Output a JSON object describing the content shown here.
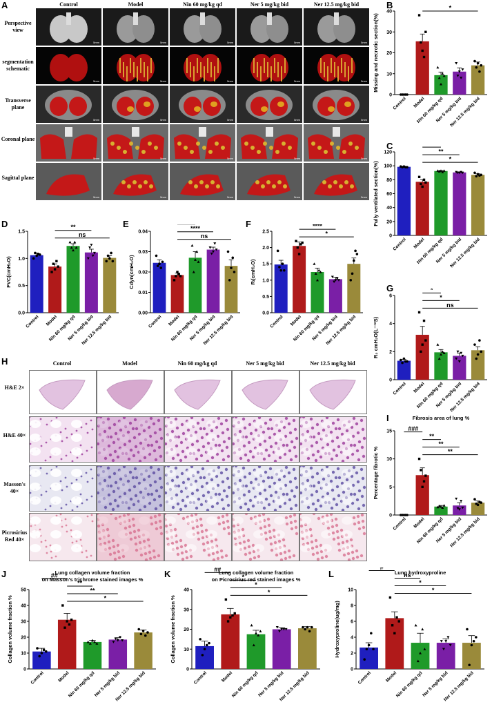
{
  "panel_letters": {
    "A": "A",
    "B": "B",
    "C": "C",
    "D": "D",
    "E": "E",
    "F": "F",
    "G": "G",
    "H": "H",
    "I": "I",
    "J": "J",
    "K": "K",
    "L": "L"
  },
  "groups": [
    "Control",
    "Model",
    "Nin 60 mg/kg qd",
    "Ner 5 mg/kg bid",
    "Ner 12.5 mg/kg bid"
  ],
  "colors": {
    "control": "#1f1fbf",
    "model": "#b01a1a",
    "nin": "#1f9a2a",
    "ner5": "#7a1fa6",
    "ner12": "#9a8a3a"
  },
  "panelA": {
    "headers": [
      "Control",
      "Model",
      "Nin 60 mg/kg qd",
      "Ner 5 mg/kg bid",
      "Ner 12.5 mg/kg bid"
    ],
    "rows": [
      "Perspective view",
      "segmentation schematic",
      "Transverse plane",
      "Coronal plane",
      "Sagittal plane"
    ],
    "scale_label": "5mm"
  },
  "panelH": {
    "headers": [
      "Control",
      "Model",
      "Nin 60 mg/kg qd",
      "Ner 5 mg/kg bid",
      "Ner 12.5 mg/kg bid"
    ],
    "rows": [
      "H&E 2×",
      "H&E 40×",
      "Masson's 40×",
      "Picrosirius Red 40×"
    ]
  },
  "chart_data": [
    {
      "id": "B",
      "type": "bar",
      "title": "",
      "ylabel": "Missing and necrotic section(%)",
      "ylim": [
        0,
        40
      ],
      "yticks": [
        0,
        10,
        20,
        30,
        40
      ],
      "categories": [
        "Control",
        "Model",
        "Nin 60 mg/kg qd",
        "Ner 5 mg/kg bid",
        "Ner 12.5 mg/kg bid"
      ],
      "values": [
        0,
        25.5,
        9.3,
        11,
        14
      ],
      "errors": [
        0,
        3.5,
        1.5,
        1.8,
        1.6
      ],
      "points": [
        [
          0,
          0,
          0,
          0,
          0
        ],
        [
          38,
          25,
          21,
          18,
          30
        ],
        [
          13,
          8,
          5,
          10,
          9
        ],
        [
          15,
          9,
          11,
          8,
          12
        ],
        [
          16,
          13,
          15,
          11,
          14
        ]
      ],
      "significance": [
        {
          "from": 1,
          "to": 0,
          "label": "###"
        },
        {
          "from": 1,
          "to": 2,
          "label": "**"
        },
        {
          "from": 1,
          "to": 3,
          "label": "**"
        },
        {
          "from": 1,
          "to": 4,
          "label": "*"
        }
      ]
    },
    {
      "id": "C",
      "type": "bar",
      "title": "",
      "ylabel": "Fully ventilated section(%)",
      "ylim": [
        0,
        120
      ],
      "yticks": [
        0,
        20,
        40,
        60,
        80,
        100,
        120
      ],
      "categories": [
        "Control",
        "Model",
        "Nin 60 mg/kg qd",
        "Ner 5 mg/kg bid",
        "Ner 12.5 mg/kg bid"
      ],
      "values": [
        98.5,
        77,
        92.5,
        90.5,
        87
      ],
      "errors": [
        0.5,
        3,
        0.8,
        0.8,
        1.5
      ],
      "points": [
        [
          99,
          98,
          99,
          98,
          98
        ],
        [
          84,
          74,
          70,
          80,
          76
        ],
        [
          93,
          92,
          93,
          91,
          93
        ],
        [
          91,
          90,
          90,
          91,
          90
        ],
        [
          90,
          85,
          88,
          86,
          87
        ]
      ],
      "significance": [
        {
          "from": 1,
          "to": 0,
          "label": "###"
        },
        {
          "from": 1,
          "to": 2,
          "label": "**"
        },
        {
          "from": 1,
          "to": 3,
          "label": "**"
        },
        {
          "from": 1,
          "to": 4,
          "label": "*"
        }
      ]
    },
    {
      "id": "D",
      "type": "bar",
      "title": "",
      "ylabel": "FVC(cmH₂O)",
      "ylim": [
        0,
        1.5
      ],
      "yticks": [
        0.0,
        0.5,
        1.0,
        1.5
      ],
      "categories": [
        "Control",
        "Model",
        "Nin 60 mg/kg qd",
        "Ner 5 mg/kg bid",
        "Ner 12.5 mg/kg bid"
      ],
      "values": [
        1.06,
        0.85,
        1.23,
        1.11,
        1.01
      ],
      "errors": [
        0.04,
        0.05,
        0.04,
        0.06,
        0.04
      ],
      "points": [
        [
          1.0,
          1.1,
          1.05,
          1.08,
          1.07
        ],
        [
          0.75,
          0.9,
          0.8,
          0.95,
          0.85
        ],
        [
          1.3,
          1.2,
          1.15,
          1.3,
          1.2
        ],
        [
          1.0,
          1.2,
          1.25,
          1.05,
          1.1
        ],
        [
          0.95,
          1.05,
          1.0,
          1.1,
          0.95
        ]
      ],
      "significance": [
        {
          "from": 1,
          "to": 0,
          "label": "#"
        },
        {
          "from": 1,
          "to": 2,
          "label": "****"
        },
        {
          "from": 1,
          "to": 3,
          "label": "**"
        },
        {
          "from": 1,
          "to": 4,
          "label": "ns"
        }
      ]
    },
    {
      "id": "E",
      "type": "bar",
      "title": "",
      "ylabel": "Cdyn(cmH₂O)",
      "ylim": [
        0,
        0.04
      ],
      "yticks": [
        0.0,
        0.01,
        0.02,
        0.03,
        0.04
      ],
      "categories": [
        "Control",
        "Model",
        "Nin 60 mg/kg qd",
        "Ner 5 mg/kg bid",
        "Ner 12.5 mg/kg bid"
      ],
      "values": [
        0.0245,
        0.0185,
        0.027,
        0.031,
        0.023
      ],
      "errors": [
        0.0015,
        0.001,
        0.003,
        0.0012,
        0.003
      ],
      "points": [
        [
          0.028,
          0.023,
          0.024,
          0.022,
          0.025
        ],
        [
          0.016,
          0.018,
          0.02,
          0.019,
          0.018
        ],
        [
          0.033,
          0.02,
          0.026,
          0.03,
          0.025
        ],
        [
          0.032,
          0.029,
          0.03,
          0.034,
          0.031
        ],
        [
          0.03,
          0.016,
          0.022,
          0.027,
          0.02
        ]
      ],
      "significance": [
        {
          "from": 1,
          "to": 0,
          "label": "#"
        },
        {
          "from": 1,
          "to": 2,
          "label": "*"
        },
        {
          "from": 1,
          "to": 3,
          "label": "****"
        },
        {
          "from": 1,
          "to": 4,
          "label": "ns"
        }
      ]
    },
    {
      "id": "F",
      "type": "bar",
      "title": "",
      "ylabel": "Rₗ(cmH₂O)",
      "ylim": [
        0,
        2.5
      ],
      "yticks": [
        0.0,
        0.5,
        1.0,
        1.5,
        2.0,
        2.5
      ],
      "categories": [
        "Control",
        "Model",
        "Nin 60 mg/kg qd",
        "Ner 5 mg/kg bid",
        "Ner 12.5 mg/kg bid"
      ],
      "values": [
        1.48,
        2.05,
        1.25,
        1.03,
        1.5
      ],
      "errors": [
        0.13,
        0.12,
        0.12,
        0.06,
        0.18
      ],
      "points": [
        [
          1.9,
          1.4,
          1.3,
          1.5,
          1.3
        ],
        [
          2.2,
          2.0,
          1.8,
          2.1,
          2.15
        ],
        [
          1.5,
          1.2,
          1.0,
          1.3,
          1.25
        ],
        [
          1.1,
          0.95,
          1.0,
          1.05,
          1.0
        ],
        [
          1.0,
          1.2,
          1.6,
          1.9,
          1.8
        ]
      ],
      "significance": [
        {
          "from": 1,
          "to": 0,
          "label": "#"
        },
        {
          "from": 1,
          "to": 2,
          "label": "**"
        },
        {
          "from": 1,
          "to": 3,
          "label": "****"
        },
        {
          "from": 1,
          "to": 4,
          "label": "*"
        }
      ]
    },
    {
      "id": "G",
      "type": "bar",
      "title": "",
      "ylabel": "R₂ cmH₂O(L⁻¹*S)",
      "ylim": [
        0,
        6
      ],
      "yticks": [
        0,
        2,
        4,
        6
      ],
      "categories": [
        "Control",
        "Model",
        "Nin 60 mg/kg qd",
        "Ner 5 mg/kg bid",
        "Ner 12.5 mg/kg bid"
      ],
      "values": [
        1.35,
        3.2,
        1.95,
        1.7,
        2.1
      ],
      "errors": [
        0.1,
        0.6,
        0.2,
        0.2,
        0.25
      ],
      "points": [
        [
          1.4,
          1.2,
          1.5,
          1.3,
          1.3
        ],
        [
          4.8,
          2.0,
          2.5,
          4.2,
          2.8
        ],
        [
          2.5,
          1.5,
          1.8,
          2.0,
          1.9
        ],
        [
          1.5,
          2.0,
          1.3,
          1.9,
          1.7
        ],
        [
          2.5,
          1.5,
          1.8,
          2.8,
          2.0
        ]
      ],
      "significance": [
        {
          "from": 1,
          "to": 0,
          "label": "#"
        },
        {
          "from": 1,
          "to": 2,
          "label": "*"
        },
        {
          "from": 1,
          "to": 3,
          "label": "*"
        },
        {
          "from": 1,
          "to": 4,
          "label": "ns"
        }
      ]
    },
    {
      "id": "I",
      "type": "bar",
      "title": "Fibrosis area of lung %",
      "ylabel": "Percentage fibrotic %",
      "ylim": [
        0,
        15
      ],
      "yticks": [
        0,
        5,
        10,
        15
      ],
      "categories": [
        "Control",
        "Model",
        "Nin 60 mg/kg qd",
        "Ner 5 mg/kg bid",
        "Ner 12.5 mg/kg bid"
      ],
      "values": [
        0,
        7.1,
        1.5,
        1.7,
        2.2
      ],
      "errors": [
        0,
        1.3,
        0.2,
        0.5,
        0.3
      ],
      "points": [
        [
          0,
          0,
          0,
          0,
          0
        ],
        [
          10,
          8,
          5,
          6,
          7
        ],
        [
          1.4,
          1.6,
          1.5,
          1.3,
          1.7
        ],
        [
          2.9,
          1.2,
          1.0,
          2.5,
          1.3
        ],
        [
          2.8,
          2.0,
          1.8,
          2.3,
          2.2
        ]
      ],
      "significance": [
        {
          "from": 1,
          "to": 0,
          "label": "###"
        },
        {
          "from": 1,
          "to": 2,
          "label": "**"
        },
        {
          "from": 1,
          "to": 3,
          "label": "**"
        },
        {
          "from": 1,
          "to": 4,
          "label": "**"
        }
      ]
    },
    {
      "id": "J",
      "type": "bar",
      "title": "Lung collagen volume fraction\non Masson's trichrome stained images %",
      "ylabel": "Collagen volume fraction %",
      "ylim": [
        0,
        50
      ],
      "yticks": [
        0,
        10,
        20,
        30,
        40,
        50
      ],
      "categories": [
        "Control",
        "Model",
        "Nin 60 mg/kg qd",
        "Ner 5 mg/kg bid",
        "Ner 12.5 mg/kg bid"
      ],
      "values": [
        11,
        31,
        17,
        18.5,
        23
      ],
      "errors": [
        2,
        4,
        1,
        1.2,
        1.5
      ],
      "points": [
        [
          13,
          8,
          10,
          12,
          11
        ],
        [
          40,
          26,
          30,
          28,
          31
        ],
        [
          17,
          16,
          18,
          17,
          16
        ],
        [
          17,
          19,
          18,
          20,
          18
        ],
        [
          25,
          22,
          24,
          21,
          23
        ]
      ],
      "significance": [
        {
          "from": 1,
          "to": 0,
          "label": "##"
        },
        {
          "from": 1,
          "to": 2,
          "label": "**"
        },
        {
          "from": 1,
          "to": 3,
          "label": "**"
        },
        {
          "from": 1,
          "to": 4,
          "label": "*"
        }
      ]
    },
    {
      "id": "K",
      "type": "bar",
      "title": "Lung collagen volume fraction\non Picrosirius red stained images %",
      "ylabel": "Collagen volume fraction %",
      "ylim": [
        0,
        40
      ],
      "yticks": [
        0,
        10,
        20,
        30,
        40
      ],
      "categories": [
        "Control",
        "Model",
        "Nin 60 mg/kg qd",
        "Ner 5 mg/kg bid",
        "Ner 12.5 mg/kg bid"
      ],
      "values": [
        11.5,
        27.5,
        17.5,
        20,
        20.5
      ],
      "errors": [
        2.5,
        3,
        2,
        0.8,
        0.8
      ],
      "points": [
        [
          15,
          7,
          10,
          12,
          13
        ],
        [
          35,
          24,
          26,
          27,
          28
        ],
        [
          22,
          12,
          18,
          17,
          19
        ],
        [
          21,
          19,
          20,
          20,
          20
        ],
        [
          21,
          20,
          21,
          19,
          21
        ]
      ],
      "significance": [
        {
          "from": 1,
          "to": 0,
          "label": "##"
        },
        {
          "from": 1,
          "to": 2,
          "label": "*"
        },
        {
          "from": 1,
          "to": 3,
          "label": "*"
        },
        {
          "from": 1,
          "to": 4,
          "label": "*"
        }
      ]
    },
    {
      "id": "L",
      "type": "bar",
      "title": "Lung hydroxyproline",
      "ylabel": "Hydroxyproline(ug/mg)",
      "ylim": [
        0,
        10
      ],
      "yticks": [
        0,
        2,
        4,
        6,
        8,
        10
      ],
      "categories": [
        "Control",
        "Model",
        "Nin 60 mg/kg qd",
        "Ner 5 mg/kg bid",
        "Ner 12.5 mg/kg bid"
      ],
      "values": [
        2.7,
        6.4,
        3.3,
        3.3,
        3.3
      ],
      "errors": [
        0.6,
        0.8,
        1.2,
        0.5,
        0.9
      ],
      "points": [
        [
          1.2,
          2.5,
          3.0,
          4.5,
          2.5
        ],
        [
          9.0,
          5.5,
          4.5,
          6.5,
          6.0
        ],
        [
          5.5,
          1.0,
          2.0,
          5.0,
          2.5
        ],
        [
          3.5,
          2.5,
          3.5,
          4.0,
          3.0
        ],
        [
          5.0,
          0.5,
          3.0,
          3.5,
          4.0
        ]
      ],
      "significance": [
        {
          "from": 1,
          "to": 0,
          "label": "#"
        },
        {
          "from": 1,
          "to": 2,
          "label": "ns"
        },
        {
          "from": 1,
          "to": 3,
          "label": "*"
        },
        {
          "from": 1,
          "to": 4,
          "label": "*"
        }
      ]
    }
  ]
}
